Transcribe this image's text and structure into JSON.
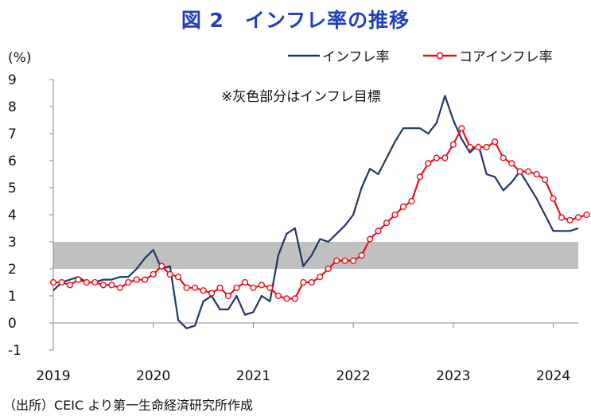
{
  "title": "図 2　インフレ率の推移",
  "source": "（出所）CEIC より第一生命経済研究所作成",
  "chart_data": {
    "type": "line",
    "unit_label": "(%)",
    "annotation": "※灰色部分はインフレ目標",
    "target_band": [
      2,
      3
    ],
    "ylim": [
      -1,
      9
    ],
    "xlim": [
      2019.0,
      2024.25
    ],
    "yticks": [
      "-1",
      "0",
      "1",
      "2",
      "3",
      "4",
      "5",
      "6",
      "7",
      "8",
      "9"
    ],
    "xticks": [
      "2019",
      "2020",
      "2021",
      "2022",
      "2023",
      "2024"
    ],
    "grid": false,
    "legend_position": "top-right",
    "colors": {
      "inflation": "#1f3864",
      "core": "#e8101a",
      "band": "#c0c0c0",
      "title": "#1f3fbf"
    },
    "series": [
      {
        "name": "インフレ率",
        "start": "2019-01",
        "values": [
          1.2,
          1.5,
          1.6,
          1.7,
          1.5,
          1.5,
          1.6,
          1.6,
          1.7,
          1.7,
          2.0,
          2.4,
          2.7,
          2.0,
          2.1,
          0.1,
          -0.2,
          -0.1,
          0.8,
          1.0,
          0.5,
          0.5,
          1.0,
          0.3,
          0.4,
          1.0,
          0.8,
          2.5,
          3.3,
          3.5,
          2.1,
          2.5,
          3.1,
          3.0,
          3.3,
          3.6,
          4.0,
          5.0,
          5.7,
          5.5,
          6.1,
          6.7,
          7.2,
          7.2,
          7.2,
          7.0,
          7.4,
          8.4,
          7.5,
          6.8,
          6.3,
          6.6,
          5.5,
          5.4,
          4.9,
          5.2,
          5.6,
          5.1,
          4.6,
          4.0,
          3.4,
          3.4,
          3.4,
          3.5
        ]
      },
      {
        "name": "コアインフレ率",
        "start": "2019-01",
        "values": [
          1.5,
          1.5,
          1.4,
          1.6,
          1.5,
          1.5,
          1.4,
          1.4,
          1.3,
          1.5,
          1.6,
          1.6,
          1.8,
          2.1,
          1.8,
          1.7,
          1.3,
          1.3,
          1.2,
          1.1,
          1.3,
          1.0,
          1.3,
          1.5,
          1.3,
          1.4,
          1.3,
          1.0,
          0.9,
          0.9,
          1.5,
          1.5,
          1.7,
          2.0,
          2.3,
          2.3,
          2.3,
          2.5,
          3.1,
          3.4,
          3.7,
          4.0,
          4.3,
          4.5,
          5.4,
          5.9,
          6.1,
          6.1,
          6.6,
          7.2,
          6.5,
          6.5,
          6.5,
          6.7,
          6.1,
          5.9,
          5.6,
          5.6,
          5.5,
          5.3,
          4.6,
          3.9,
          3.8,
          3.9,
          4.0
        ]
      }
    ]
  }
}
